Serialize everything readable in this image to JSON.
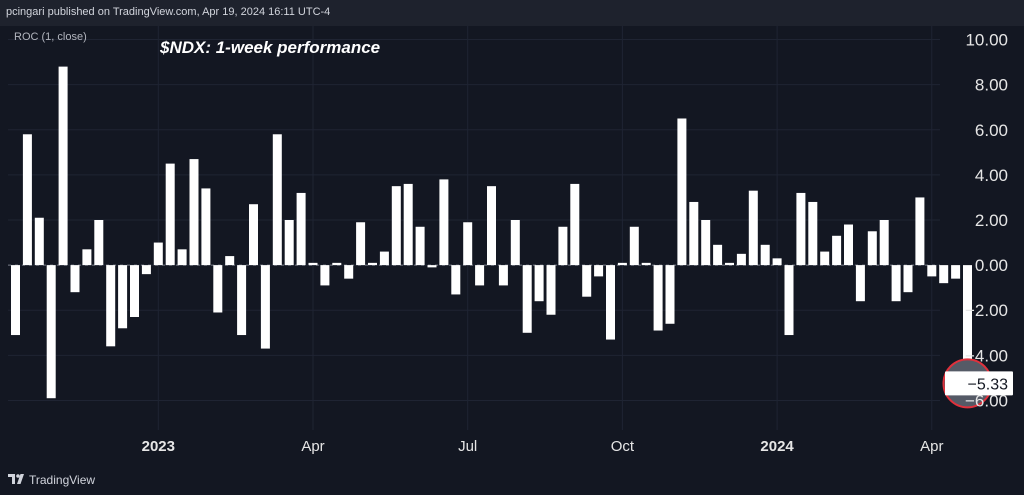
{
  "header": {
    "text": "pcingari published on TradingView.com, Apr 19, 2024 16:11 UTC-4"
  },
  "footer": {
    "brand": "TradingView"
  },
  "colors": {
    "background": "#131722",
    "bar": "#ffffff",
    "grid": "#1f2433",
    "marker_fill": "#555a66",
    "marker_stroke": "#e0313c"
  },
  "chart_data": {
    "type": "bar",
    "title": "$NDX: 1-week performance",
    "indicator": "ROC (1, close)",
    "ylim": [
      -6.6,
      10.6
    ],
    "y_ticks": [
      10,
      8,
      6,
      4,
      2,
      0,
      -2,
      -4,
      -6
    ],
    "y_tick_labels": [
      "10.00",
      "8.00",
      "6.00",
      "4.00",
      "2.00",
      "0.00",
      "−2.00",
      "−4.00",
      "−6.00"
    ],
    "x_ticks": [
      {
        "label": "2023",
        "bold": true,
        "index": 12
      },
      {
        "label": "Apr",
        "bold": false,
        "index": 25
      },
      {
        "label": "Jul",
        "bold": false,
        "index": 38
      },
      {
        "label": "Oct",
        "bold": false,
        "index": 51
      },
      {
        "label": "2024",
        "bold": true,
        "index": 64
      },
      {
        "label": "Apr",
        "bold": false,
        "index": 77
      }
    ],
    "last_value": -5.33,
    "last_value_label": "−5.33",
    "values": [
      -3.1,
      5.8,
      2.1,
      -5.9,
      8.8,
      -1.2,
      0.7,
      2.0,
      -3.6,
      -2.8,
      -2.3,
      -0.4,
      1.0,
      4.5,
      0.7,
      4.7,
      3.4,
      -2.1,
      0.4,
      -3.1,
      2.7,
      -3.7,
      5.8,
      2.0,
      3.2,
      0.1,
      -0.9,
      0.1,
      -0.6,
      1.9,
      0.1,
      0.6,
      3.5,
      3.6,
      1.7,
      -0.1,
      3.8,
      -1.3,
      1.9,
      -0.9,
      3.5,
      -0.9,
      2.0,
      -3.0,
      -1.6,
      -2.2,
      1.7,
      3.6,
      -1.4,
      -0.5,
      -3.3,
      0.1,
      1.7,
      0.1,
      -2.9,
      -2.6,
      6.5,
      2.8,
      2.0,
      0.9,
      0.1,
      0.5,
      3.3,
      0.9,
      0.3,
      -3.1,
      3.2,
      2.8,
      0.6,
      1.3,
      1.8,
      -1.6,
      1.5,
      2.0,
      -1.6,
      -1.2,
      3.0,
      -0.5,
      -0.8,
      -0.6,
      -5.33
    ]
  }
}
